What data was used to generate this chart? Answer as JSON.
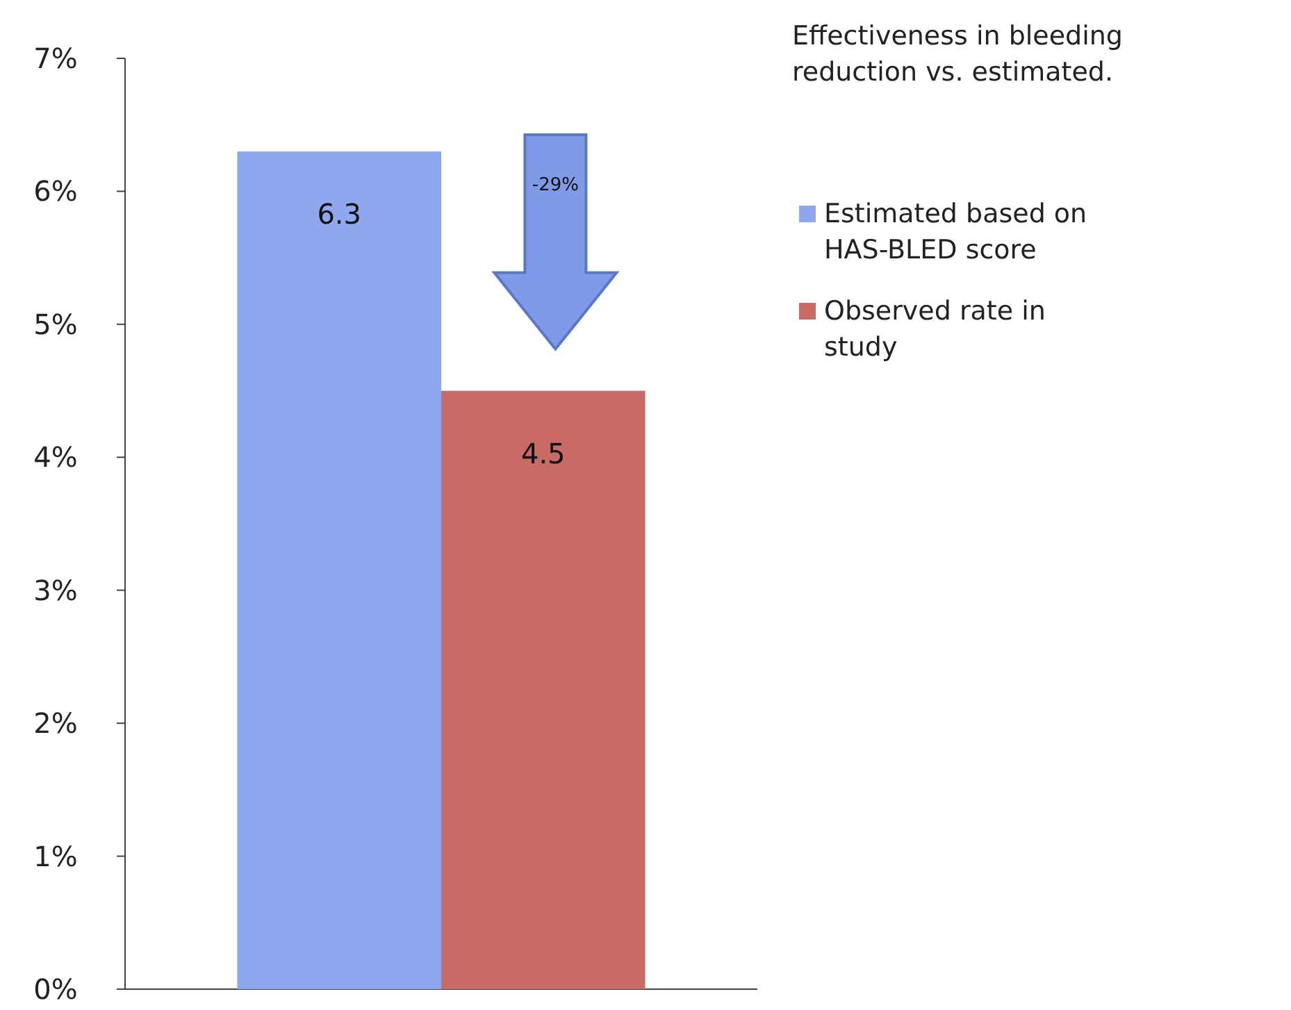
{
  "chart_data": {
    "type": "bar",
    "title": "Effectiveness in bleeding reduction vs. estimated.",
    "categories": [
      null
    ],
    "series": [
      {
        "name": "Estimated based on HAS-BLED score",
        "color": "#8fa7ec",
        "values": [
          6.3
        ]
      },
      {
        "name": "Observed rate in study",
        "color": "#c96a66",
        "values": [
          4.5
        ]
      }
    ],
    "ylim": [
      0,
      7
    ],
    "yticks": [
      {
        "value": 0,
        "label": "0%"
      },
      {
        "value": 1,
        "label": "1%"
      },
      {
        "value": 2,
        "label": "2%"
      },
      {
        "value": 3,
        "label": "3%"
      },
      {
        "value": 4,
        "label": "4%"
      },
      {
        "value": 5,
        "label": "5%"
      },
      {
        "value": 6,
        "label": "6%"
      },
      {
        "value": 7,
        "label": "7%"
      }
    ],
    "data_labels": true,
    "legend": "right",
    "annotations": [
      "-29%"
    ]
  }
}
